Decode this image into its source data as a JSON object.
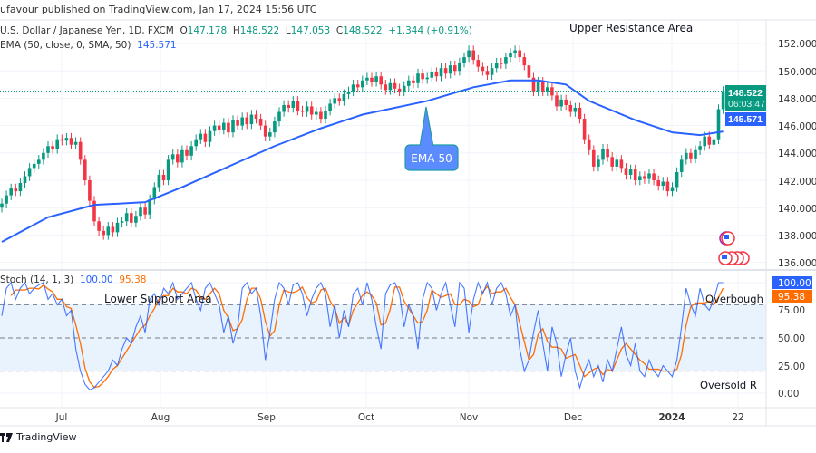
{
  "header": {
    "published": "ufavour published on TradingView.com, Jan 17, 2024 15:56 UTC"
  },
  "legend": {
    "symbol": "U.S. Dollar / Japanese Yen, 1D, FXCM",
    "open_label": "O",
    "open": "147.178",
    "high_label": "H",
    "high": "148.522",
    "low_label": "L",
    "low": "147.053",
    "close_label": "C",
    "close": "148.522",
    "change": "+1.344 (+0.91%)",
    "ema_label": "EMA (50, close, 0, SMA, 50)",
    "ema_value": "145.571",
    "stoch_label": "Stoch (14, 1, 3)",
    "stoch_k": "100.00",
    "stoch_d": "95.38"
  },
  "annotations": {
    "upper": "Upper Resistance Area",
    "lower": "Lower Support Area",
    "ema_callout": "EMA-50",
    "overbought": "Overbough",
    "oversold": "Oversold R"
  },
  "price_axis": {
    "labels": [
      "152.000",
      "150.000",
      "148.000",
      "146.000",
      "144.000",
      "142.000",
      "140.000",
      "138.000",
      "136.000"
    ],
    "current_price": "148.522",
    "countdown": "06:03:47",
    "ema_price": "145.571"
  },
  "stoch_axis": {
    "labels": [
      "100.00",
      "75.00",
      "50.00",
      "25.00",
      "0.00"
    ],
    "k_value": "100.00",
    "d_value": "95.38"
  },
  "time_axis": {
    "labels": [
      "Jul",
      "Aug",
      "Sep",
      "Oct",
      "Nov",
      "Dec",
      "2024",
      "22"
    ]
  },
  "footer": {
    "brand": "TradingView"
  },
  "colors": {
    "up": "#089981",
    "down": "#f23645",
    "ema": "#2962ff",
    "stoch_k": "#2962ff",
    "stoch_d": "#ff6d00",
    "band": "#e3f0fc"
  },
  "chart_data": [
    {
      "type": "candlestick",
      "title": "U.S. Dollar / Japanese Yen, 1D, FXCM",
      "ylim": [
        135.5,
        153
      ],
      "grid": true,
      "first_open": 140.0,
      "closes": [
        140.3,
        140.9,
        141.4,
        141.2,
        141.8,
        142.3,
        142.9,
        143.2,
        143.5,
        144.0,
        144.5,
        144.3,
        145.0,
        144.9,
        145.1,
        144.6,
        144.8,
        143.5,
        142.0,
        140.5,
        139.0,
        138.3,
        138.0,
        138.6,
        138.2,
        138.9,
        139.0,
        139.6,
        138.9,
        139.4,
        140.0,
        139.5,
        140.6,
        141.5,
        142.4,
        142.0,
        143.5,
        143.9,
        143.3,
        144.2,
        143.8,
        144.5,
        145.0,
        145.4,
        144.8,
        145.6,
        146.0,
        145.7,
        146.2,
        145.5,
        146.4,
        146.0,
        146.6,
        146.1,
        146.8,
        146.5,
        146.0,
        145.2,
        145.5,
        146.3,
        147.0,
        147.5,
        147.3,
        147.8,
        147.1,
        147.0,
        147.4,
        146.8,
        147.0,
        146.5,
        147.1,
        147.6,
        148.0,
        147.8,
        148.3,
        148.5,
        149.0,
        148.8,
        149.3,
        149.5,
        149.2,
        149.6,
        149.0,
        148.6,
        149.1,
        148.7,
        148.5,
        148.9,
        149.3,
        149.1,
        149.8,
        149.4,
        149.5,
        149.9,
        149.6,
        150.2,
        149.8,
        150.4,
        150.0,
        150.6,
        151.0,
        151.5,
        150.8,
        150.3,
        150.0,
        149.7,
        150.2,
        150.6,
        150.5,
        151.0,
        151.3,
        151.5,
        151.0,
        150.4,
        149.5,
        148.5,
        149.2,
        148.5,
        148.8,
        148.2,
        147.4,
        147.9,
        147.5,
        147.0,
        147.3,
        146.5,
        145.0,
        144.2,
        143.0,
        143.5,
        144.3,
        143.7,
        143.0,
        143.5,
        142.9,
        142.4,
        142.8,
        142.0,
        142.3,
        142.1,
        142.5,
        142.0,
        141.6,
        141.9,
        141.2,
        141.5,
        142.6,
        143.5,
        144.0,
        143.6,
        144.2,
        144.5,
        145.2,
        144.6,
        145.0,
        147.2,
        148.522
      ],
      "ema_50": [
        [
          0,
          137.5
        ],
        [
          10,
          139.3
        ],
        [
          20,
          140.2
        ],
        [
          31,
          140.4
        ],
        [
          39,
          141.5
        ],
        [
          49,
          143.0
        ],
        [
          59,
          144.5
        ],
        [
          69,
          145.8
        ],
        [
          78,
          146.8
        ],
        [
          92,
          147.8
        ],
        [
          102,
          148.8
        ],
        [
          110,
          149.3
        ],
        [
          116,
          149.3
        ],
        [
          122,
          149.0
        ],
        [
          127,
          147.8
        ],
        [
          137,
          146.4
        ],
        [
          145,
          145.5
        ],
        [
          151,
          145.3
        ],
        [
          156,
          145.571
        ]
      ]
    },
    {
      "type": "line",
      "title": "Stoch (14, 1, 3)",
      "ylim": [
        0,
        100
      ],
      "levels": [
        80,
        50,
        20
      ],
      "series": [
        {
          "name": "%K",
          "values": [
            70,
            95,
            100,
            85,
            95,
            100,
            90,
            95,
            98,
            100,
            85,
            90,
            80,
            85,
            70,
            75,
            40,
            20,
            8,
            3,
            5,
            10,
            15,
            20,
            30,
            25,
            40,
            50,
            45,
            60,
            70,
            55,
            85,
            90,
            80,
            95,
            90,
            100,
            85,
            90,
            95,
            100,
            85,
            75,
            95,
            100,
            90,
            80,
            55,
            70,
            45,
            60,
            95,
            100,
            90,
            95,
            70,
            30,
            55,
            85,
            100,
            95,
            80,
            98,
            100,
            90,
            70,
            85,
            95,
            100,
            90,
            60,
            80,
            50,
            75,
            60,
            90,
            95,
            80,
            100,
            85,
            60,
            40,
            90,
            98,
            100,
            90,
            60,
            80,
            70,
            40,
            85,
            100,
            95,
            75,
            90,
            100,
            80,
            60,
            100,
            95,
            55,
            85,
            100,
            90,
            100,
            80,
            95,
            100,
            90,
            70,
            80,
            40,
            20,
            30,
            55,
            75,
            45,
            20,
            60,
            45,
            15,
            35,
            50,
            20,
            5,
            20,
            30,
            15,
            25,
            10,
            30,
            20,
            40,
            60,
            35,
            25,
            45,
            20,
            15,
            30,
            20,
            15,
            25,
            20,
            15,
            30,
            60,
            95,
            80,
            70,
            95,
            80,
            75,
            85,
            100,
            100
          ]
        },
        {
          "name": "%D",
          "smoothing": 3
        }
      ]
    }
  ]
}
